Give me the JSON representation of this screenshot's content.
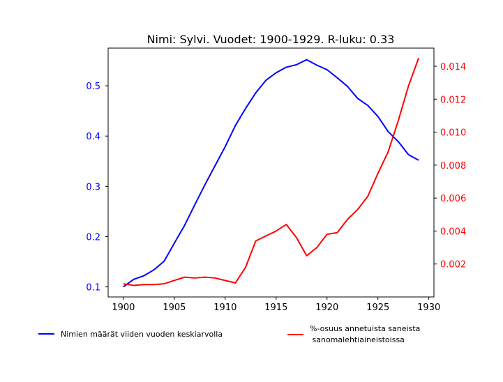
{
  "chart_data": {
    "type": "line",
    "title": "Nimi: Sylvi. Vuodet: 1900-1929. R-luku: 0.33",
    "xlim": [
      1898.5,
      1930.5
    ],
    "x_ticks": [
      1900,
      1905,
      1910,
      1915,
      1920,
      1925,
      1930
    ],
    "y_left": {
      "lim": [
        0.08,
        0.575
      ],
      "ticks": [
        0.1,
        0.2,
        0.3,
        0.4,
        0.5
      ],
      "tick_labels": [
        "0.1",
        "0.2",
        "0.3",
        "0.4",
        "0.5"
      ],
      "color": "#0000ff"
    },
    "y_right": {
      "lim": [
        0.0,
        0.0151
      ],
      "ticks": [
        0.002,
        0.004,
        0.006,
        0.008,
        0.01,
        0.012,
        0.014
      ],
      "tick_labels": [
        "0.002",
        "0.004",
        "0.006",
        "0.008",
        "0.010",
        "0.012",
        "0.014"
      ],
      "color": "#ff0000"
    },
    "x": [
      1900,
      1901,
      1902,
      1903,
      1904,
      1905,
      1906,
      1907,
      1908,
      1909,
      1910,
      1911,
      1912,
      1913,
      1914,
      1915,
      1916,
      1917,
      1918,
      1919,
      1920,
      1921,
      1922,
      1923,
      1924,
      1925,
      1926,
      1927,
      1928,
      1929
    ],
    "series": [
      {
        "name": "Nimien määrät viiden vuoden keskiarvolla",
        "axis": "left",
        "color": "#0000ff",
        "values": [
          0.1,
          0.115,
          0.122,
          0.134,
          0.151,
          0.187,
          0.222,
          0.263,
          0.303,
          0.341,
          0.379,
          0.421,
          0.455,
          0.486,
          0.511,
          0.526,
          0.537,
          0.542,
          0.552,
          0.541,
          0.532,
          0.516,
          0.499,
          0.475,
          0.461,
          0.439,
          0.409,
          0.389,
          0.363,
          0.352
        ]
      },
      {
        "name": "%-osuus annetuista saneista\n sanomalehtiaineistoissa",
        "axis": "right",
        "color": "#ff0000",
        "values": [
          0.0008,
          0.0007,
          0.00075,
          0.00075,
          0.0008,
          0.001,
          0.0012,
          0.00115,
          0.0012,
          0.00115,
          0.001,
          0.00085,
          0.0018,
          0.0034,
          0.0037,
          0.004,
          0.0044,
          0.0036,
          0.0025,
          0.003,
          0.0038,
          0.0039,
          0.0047,
          0.0053,
          0.0061,
          0.0075,
          0.0088,
          0.0107,
          0.0128,
          0.0145
        ]
      }
    ],
    "legend": [
      {
        "label": "Nimien määrät viiden vuoden keskiarvolla",
        "color": "#0000ff"
      },
      {
        "label_lines": [
          "%-osuus annetuista saneista",
          " sanomalehtiaineistoissa"
        ],
        "color": "#ff0000"
      }
    ],
    "grid": false,
    "legend_placement": "below"
  }
}
